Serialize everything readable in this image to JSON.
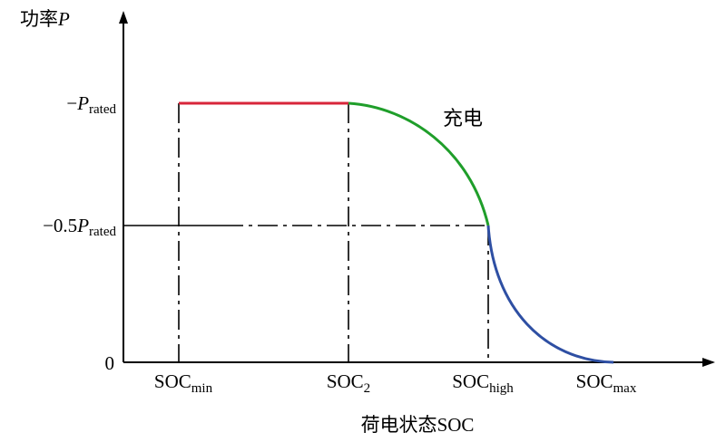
{
  "axes": {
    "y_title_cjk": "功率",
    "y_title_symbol": "P",
    "x_title_cjk": "荷电状态",
    "x_title_latin": "SOC"
  },
  "y_ticks": {
    "rated": {
      "prefix": "−",
      "symbol": "P",
      "subscript": "rated"
    },
    "half": {
      "prefix": "−0.5",
      "symbol": "P",
      "subscript": "rated"
    },
    "zero": {
      "label": "0"
    }
  },
  "x_ticks": [
    {
      "base": "SOC",
      "subscript": "min"
    },
    {
      "base": "SOC",
      "subscript": "2"
    },
    {
      "base": "SOC",
      "subscript": "high"
    },
    {
      "base": "SOC",
      "subscript": "max"
    }
  ],
  "annotation": "充电",
  "colors": {
    "axis": "#000000",
    "constant_segment": "#d8253a",
    "decline_segment": "#1f9e2a",
    "tail_segment": "#2e4fa3"
  }
}
